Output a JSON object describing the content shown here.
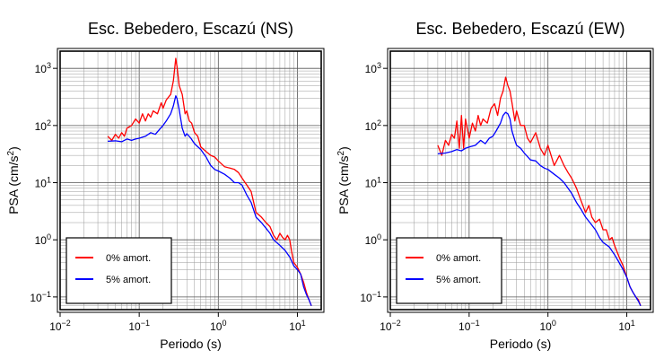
{
  "chart_data": [
    {
      "type": "line",
      "title": "Esc. Bebedero, Escazú (NS)",
      "xlabel": "Periodo (s)",
      "ylabel": "PSA (cm/s²)",
      "xscale": "log",
      "yscale": "log",
      "xlim": [
        0.01,
        20
      ],
      "ylim": [
        0.06,
        2000
      ],
      "grid": true,
      "legend_position": "bottom-left",
      "x_ticks": [
        "10−2",
        "10−1",
        "100",
        "101"
      ],
      "y_ticks": [
        "10−1",
        "100",
        "101",
        "102",
        "103"
      ],
      "series": [
        {
          "name": "0% amort.",
          "color": "#ff0000",
          "x": [
            0.04,
            0.045,
            0.05,
            0.055,
            0.06,
            0.065,
            0.07,
            0.08,
            0.09,
            0.1,
            0.11,
            0.12,
            0.13,
            0.14,
            0.15,
            0.17,
            0.19,
            0.2,
            0.22,
            0.25,
            0.27,
            0.29,
            0.3,
            0.32,
            0.35,
            0.38,
            0.4,
            0.43,
            0.46,
            0.5,
            0.55,
            0.6,
            0.7,
            0.8,
            0.9,
            1.0,
            1.2,
            1.4,
            1.6,
            1.8,
            2.0,
            2.3,
            2.6,
            3.0,
            3.5,
            4.0,
            4.5,
            5.0,
            5.5,
            6.0,
            6.5,
            7.0,
            7.5,
            8.0,
            8.5,
            9.0,
            10.0,
            11.0,
            12.0,
            13.0,
            14.0,
            15.0
          ],
          "y": [
            65,
            55,
            70,
            60,
            75,
            65,
            90,
            100,
            130,
            110,
            160,
            120,
            160,
            140,
            180,
            160,
            250,
            200,
            280,
            350,
            600,
            1500,
            1100,
            500,
            350,
            160,
            180,
            120,
            110,
            75,
            65,
            42,
            35,
            30,
            28,
            24,
            19,
            18,
            17,
            15,
            12,
            9,
            7,
            3.0,
            2.5,
            2.0,
            1.7,
            1.2,
            1.0,
            1.3,
            1.1,
            1.0,
            1.2,
            1.0,
            0.6,
            0.4,
            0.33,
            0.25,
            0.18,
            0.12,
            0.09,
            0.07
          ]
        },
        {
          "name": "5% amort.",
          "color": "#0000ff",
          "x": [
            0.04,
            0.05,
            0.06,
            0.07,
            0.08,
            0.09,
            0.1,
            0.12,
            0.14,
            0.16,
            0.18,
            0.2,
            0.22,
            0.25,
            0.27,
            0.29,
            0.3,
            0.32,
            0.35,
            0.38,
            0.4,
            0.45,
            0.5,
            0.6,
            0.7,
            0.8,
            0.9,
            1.0,
            1.2,
            1.4,
            1.6,
            1.8,
            2.0,
            2.3,
            2.6,
            3.0,
            3.5,
            4.0,
            4.5,
            5.0,
            6.0,
            7.0,
            8.0,
            9.0,
            10.0,
            11.0,
            12.0,
            13.0,
            14.0,
            15.0
          ],
          "y": [
            53,
            54,
            52,
            58,
            55,
            58,
            60,
            65,
            75,
            70,
            85,
            100,
            120,
            160,
            220,
            330,
            300,
            190,
            90,
            65,
            72,
            60,
            48,
            38,
            28,
            20,
            17,
            16,
            14,
            12,
            10,
            10,
            9,
            6,
            4.5,
            2.5,
            2.0,
            1.6,
            1.3,
            1.0,
            0.8,
            0.65,
            0.5,
            0.35,
            0.3,
            0.25,
            0.15,
            0.11,
            0.09,
            0.07
          ]
        }
      ]
    },
    {
      "type": "line",
      "title": "Esc. Bebedero, Escazú (EW)",
      "xlabel": "Periodo (s)",
      "ylabel": "PSA (cm/s²)",
      "xscale": "log",
      "yscale": "log",
      "xlim": [
        0.01,
        20
      ],
      "ylim": [
        0.06,
        2000
      ],
      "grid": true,
      "legend_position": "bottom-left",
      "x_ticks": [
        "10−2",
        "10−1",
        "100",
        "101"
      ],
      "y_ticks": [
        "10−1",
        "100",
        "101",
        "102",
        "103"
      ],
      "series": [
        {
          "name": "0% amort.",
          "color": "#ff0000",
          "x": [
            0.04,
            0.045,
            0.05,
            0.055,
            0.06,
            0.065,
            0.07,
            0.075,
            0.08,
            0.085,
            0.09,
            0.1,
            0.11,
            0.12,
            0.13,
            0.14,
            0.15,
            0.17,
            0.19,
            0.21,
            0.23,
            0.25,
            0.27,
            0.29,
            0.31,
            0.33,
            0.35,
            0.38,
            0.4,
            0.45,
            0.5,
            0.55,
            0.6,
            0.7,
            0.8,
            0.9,
            1.0,
            1.2,
            1.4,
            1.6,
            1.8,
            2.0,
            2.3,
            2.6,
            3.0,
            3.3,
            3.6,
            4.0,
            4.5,
            5.0,
            5.5,
            6.0,
            6.5,
            7.0,
            8.0,
            9.0,
            10.0,
            11.0,
            12.0,
            13.0,
            14.0,
            15.0
          ],
          "y": [
            45,
            30,
            55,
            45,
            70,
            60,
            120,
            40,
            150,
            40,
            130,
            60,
            110,
            80,
            150,
            100,
            130,
            110,
            200,
            240,
            150,
            300,
            400,
            700,
            500,
            400,
            250,
            120,
            180,
            100,
            100,
            60,
            50,
            75,
            40,
            30,
            45,
            20,
            30,
            20,
            15,
            12,
            8,
            5,
            3.0,
            4.0,
            2.5,
            2.0,
            2.3,
            1.5,
            1.5,
            1.0,
            1.1,
            0.8,
            0.5,
            0.35,
            0.22,
            0.15,
            0.12,
            0.1,
            0.09,
            0.07
          ]
        },
        {
          "name": "5% amort.",
          "color": "#0000ff",
          "x": [
            0.04,
            0.05,
            0.06,
            0.07,
            0.08,
            0.09,
            0.1,
            0.12,
            0.14,
            0.16,
            0.18,
            0.2,
            0.22,
            0.25,
            0.27,
            0.29,
            0.31,
            0.33,
            0.35,
            0.38,
            0.4,
            0.45,
            0.5,
            0.6,
            0.7,
            0.8,
            0.9,
            1.0,
            1.2,
            1.4,
            1.6,
            1.8,
            2.0,
            2.3,
            2.6,
            3.0,
            3.5,
            4.0,
            4.5,
            5.0,
            6.0,
            7.0,
            8.0,
            9.0,
            10.0,
            11.0,
            12.0,
            13.0,
            14.0,
            15.0
          ],
          "y": [
            32,
            33,
            35,
            38,
            36,
            40,
            42,
            45,
            55,
            48,
            60,
            65,
            80,
            110,
            150,
            170,
            160,
            130,
            80,
            55,
            45,
            40,
            33,
            25,
            24,
            20,
            18,
            17,
            14,
            12,
            10,
            8,
            6.5,
            4.5,
            3.5,
            2.5,
            1.9,
            1.5,
            1.1,
            0.9,
            0.75,
            0.55,
            0.4,
            0.3,
            0.22,
            0.15,
            0.12,
            0.1,
            0.085,
            0.07
          ]
        }
      ]
    }
  ]
}
